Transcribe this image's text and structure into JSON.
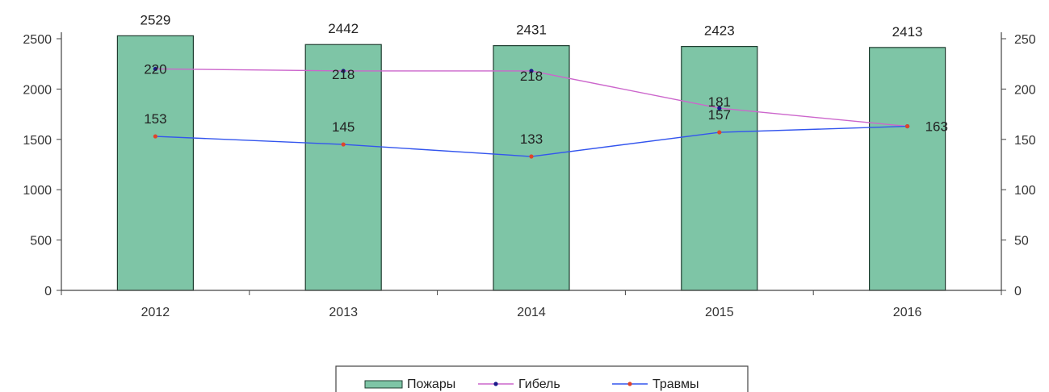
{
  "chart_data": {
    "type": "bar",
    "categories": [
      "2012",
      "2013",
      "2014",
      "2015",
      "2016"
    ],
    "bar_series": {
      "name": "Пожары",
      "values": [
        2529,
        2442,
        2431,
        2423,
        2413
      ],
      "color": "#7ec5a6",
      "axis": "left"
    },
    "line_series": [
      {
        "name": "Гибель",
        "values": [
          220,
          218,
          218,
          181,
          163
        ],
        "color": "#cc66cc",
        "marker_color": "#1a1a8a",
        "axis": "right"
      },
      {
        "name": "Травмы",
        "values": [
          153,
          145,
          133,
          157,
          163
        ],
        "color": "#3355ee",
        "marker_color": "#e0442a",
        "axis": "right"
      }
    ],
    "y_left": {
      "ticks": [
        0,
        500,
        1000,
        1500,
        2000,
        2500
      ],
      "min": 0,
      "max": 2500
    },
    "y_right": {
      "ticks": [
        0,
        50,
        100,
        150,
        200,
        250
      ],
      "min": 0,
      "max": 250
    },
    "legend": {
      "position": "bottom",
      "items": [
        "Пожары",
        "Гибель",
        "Травмы"
      ]
    },
    "title": "",
    "xlabel": "",
    "ylabel": ""
  }
}
